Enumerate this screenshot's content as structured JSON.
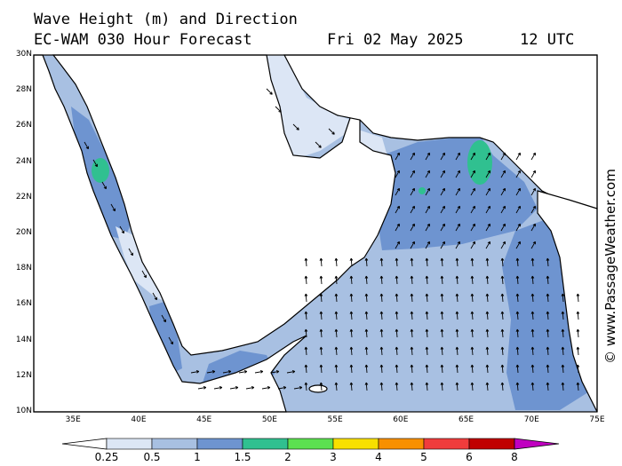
{
  "header": {
    "title": "Wave Height (m) and Direction",
    "model": "EC-WAM 030 Hour Forecast",
    "date": "Fri 02 May 2025",
    "time": "12 UTC"
  },
  "map": {
    "lat_range": [
      10,
      30
    ],
    "lon_range": [
      32,
      75
    ],
    "lat_labels": [
      "30N",
      "28N",
      "26N",
      "24N",
      "22N",
      "20N",
      "18N",
      "16N",
      "14N",
      "12N",
      "10N"
    ],
    "lon_labels": [
      "35E",
      "40E",
      "45E",
      "50E",
      "55E",
      "60E",
      "65E",
      "70E",
      "75E"
    ]
  },
  "legend": {
    "labels": [
      "0.25",
      "0.5",
      "1",
      "1.5",
      "2",
      "3",
      "4",
      "5",
      "6",
      "8"
    ],
    "colors": [
      "#ffffff",
      "#dce6f5",
      "#a8c0e2",
      "#6e94d0",
      "#30c090",
      "#5ce050",
      "#f8e000",
      "#f89000",
      "#f03c3c",
      "#c00000",
      "#c000c0"
    ]
  },
  "credit": "© www.PassageWeather.com"
}
